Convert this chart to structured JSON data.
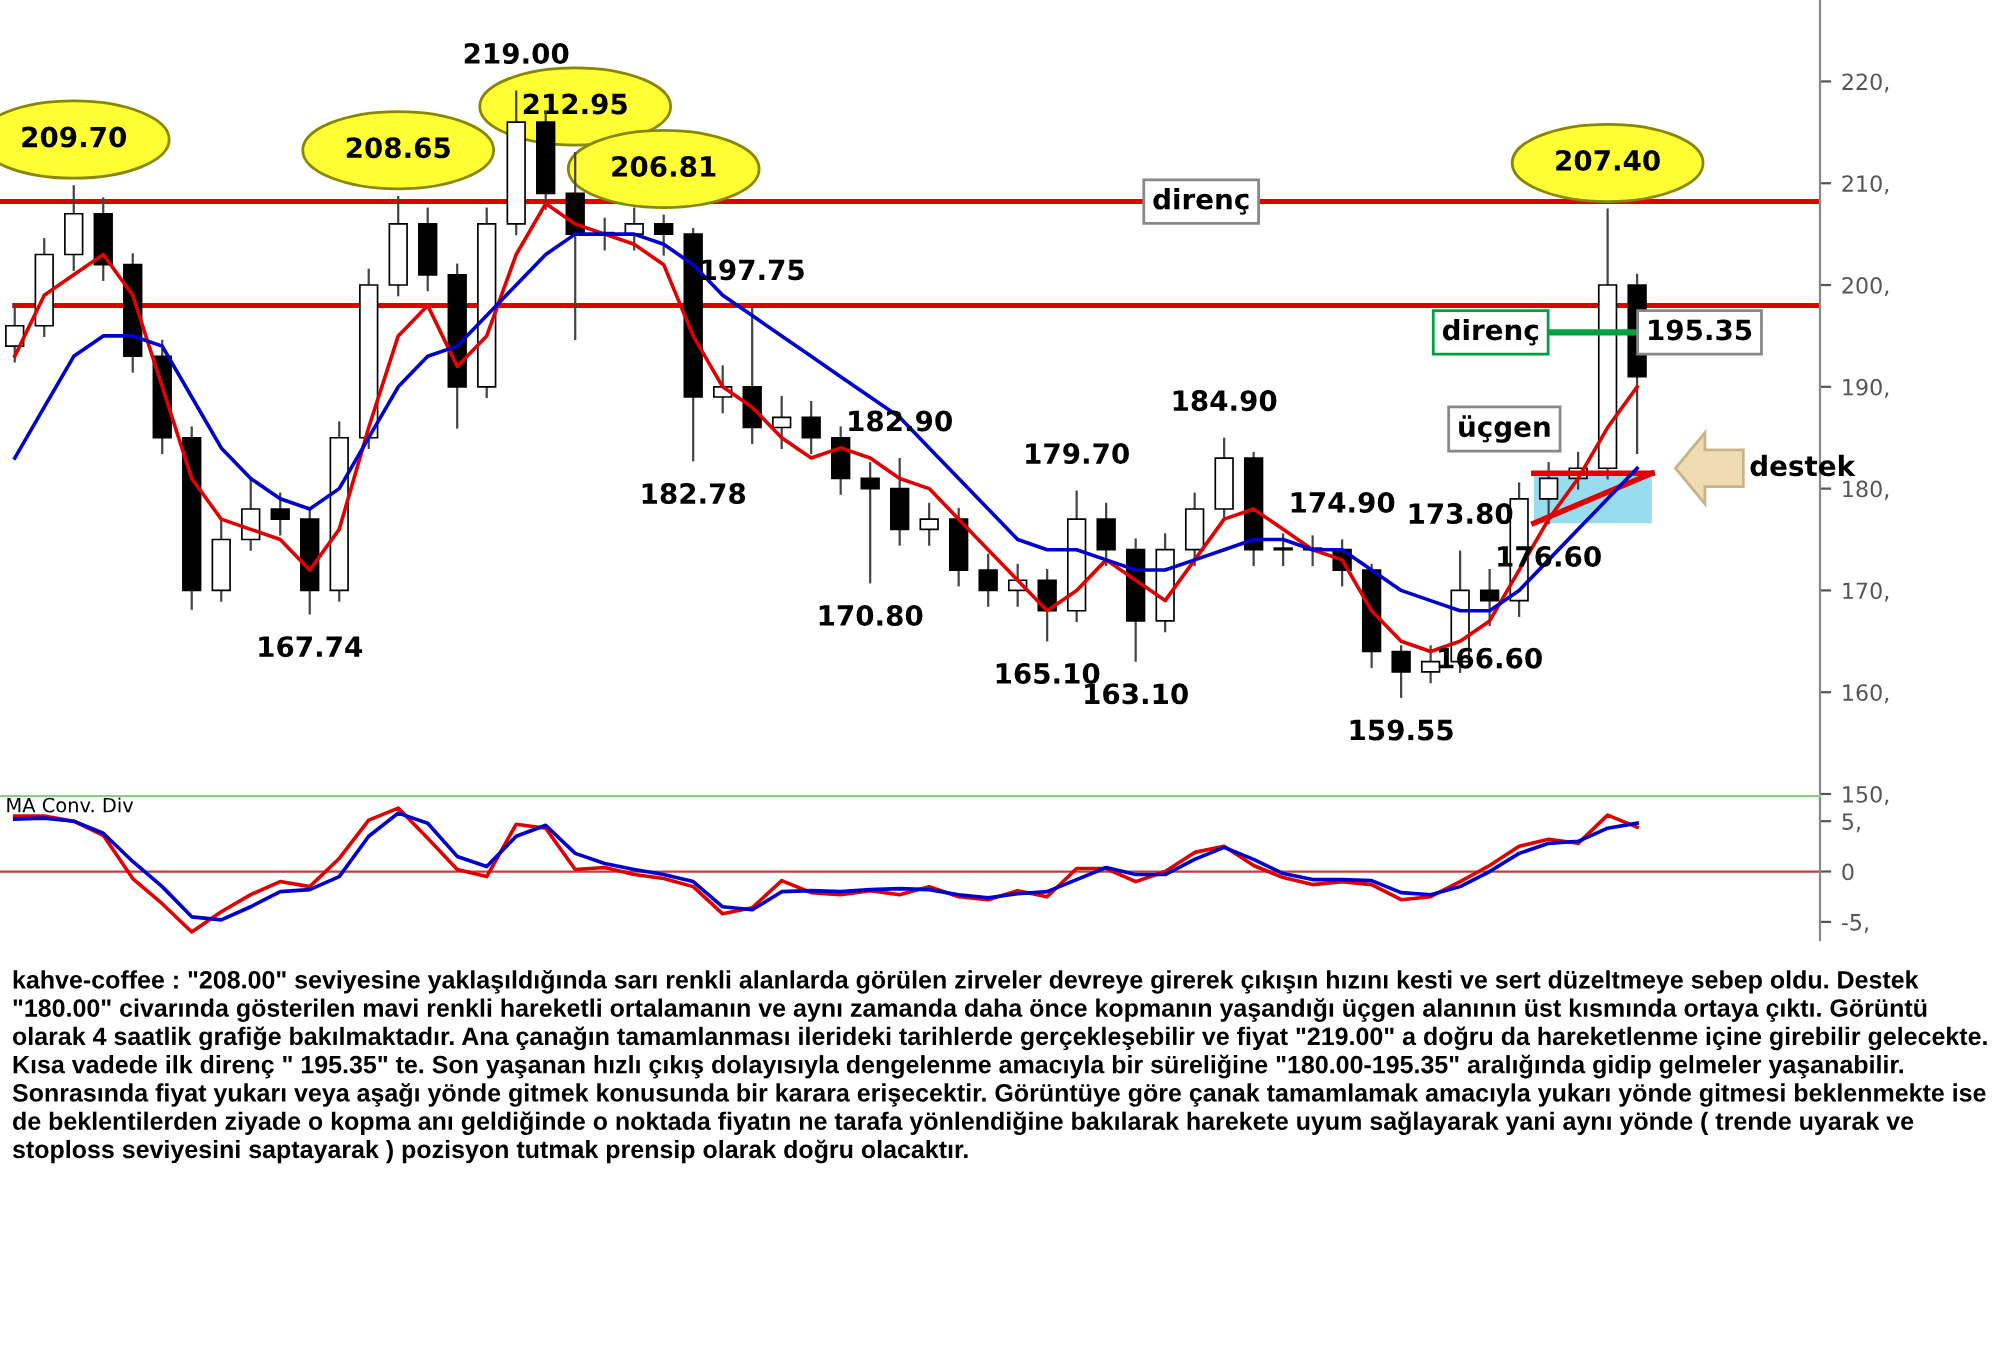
{
  "chart_data": [
    {
      "type": "candlestick",
      "color": "#000000",
      "tick_labels": "y",
      "categories": [
        null,
        null,
        null,
        null,
        null,
        null,
        null,
        null,
        null,
        null,
        null,
        null,
        null,
        null,
        null,
        null,
        null,
        null,
        null,
        null,
        null,
        null,
        null,
        null,
        null,
        null,
        null,
        null,
        null,
        null,
        null,
        null,
        null,
        null,
        null,
        null,
        null,
        null,
        null,
        null,
        null,
        null,
        null,
        null,
        null,
        null,
        null,
        null,
        null,
        null,
        null,
        null,
        null,
        null,
        null,
        null
      ],
      "ohlc": [
        [
          194,
          198,
          192.5,
          196
        ],
        [
          196,
          204.5,
          195,
          203
        ],
        [
          203,
          209.7,
          201.5,
          207
        ],
        [
          207,
          208.5,
          200.5,
          202
        ],
        [
          202,
          203,
          191.5,
          193
        ],
        [
          193,
          194.5,
          183.5,
          185
        ],
        [
          185,
          186,
          168.2,
          170
        ],
        [
          170,
          177,
          169,
          175
        ],
        [
          175,
          181,
          174,
          178
        ],
        [
          178,
          179.5,
          175.5,
          177
        ],
        [
          177,
          178,
          167.74,
          170
        ],
        [
          170,
          186.5,
          169,
          185
        ],
        [
          185,
          201.5,
          184,
          200
        ],
        [
          200,
          208.65,
          199,
          206
        ],
        [
          206,
          207.5,
          199.5,
          201
        ],
        [
          201,
          202,
          186,
          190
        ],
        [
          190,
          207.5,
          189,
          206
        ],
        [
          206,
          219,
          205,
          216
        ],
        [
          216,
          217,
          207.5,
          209
        ],
        [
          209,
          212.95,
          194.7,
          205
        ],
        [
          205,
          206.5,
          203.5,
          205
        ],
        [
          205,
          207.5,
          203.5,
          206
        ],
        [
          206,
          206.81,
          203,
          205
        ],
        [
          205,
          205.5,
          182.78,
          189
        ],
        [
          189,
          192,
          187.5,
          190
        ],
        [
          190,
          197.75,
          184.5,
          186
        ],
        [
          186,
          189,
          184,
          187
        ],
        [
          187,
          188.5,
          183.5,
          185
        ],
        [
          185,
          186,
          179.5,
          181
        ],
        [
          181,
          182.5,
          170.8,
          180
        ],
        [
          180,
          182.9,
          174.5,
          176
        ],
        [
          176,
          178.5,
          174.5,
          177
        ],
        [
          177,
          178,
          170.5,
          172
        ],
        [
          172,
          173.5,
          168.5,
          170
        ],
        [
          170,
          172.5,
          168.5,
          171
        ],
        [
          171,
          172,
          165.1,
          168
        ],
        [
          168,
          179.7,
          167,
          177
        ],
        [
          177,
          178.5,
          172.5,
          174
        ],
        [
          174,
          175,
          163.1,
          167
        ],
        [
          167,
          175.5,
          166,
          174
        ],
        [
          174,
          179.5,
          172.5,
          178
        ],
        [
          178,
          184.9,
          177,
          183
        ],
        [
          183,
          183.5,
          172.5,
          174
        ],
        [
          174,
          175.5,
          172.5,
          174
        ],
        [
          174,
          175.3,
          172.5,
          174
        ],
        [
          174,
          174.9,
          170.5,
          172
        ],
        [
          172,
          172.5,
          162.5,
          164
        ],
        [
          164,
          164.5,
          159.55,
          162
        ],
        [
          162,
          164.5,
          161,
          163
        ],
        [
          163,
          173.8,
          162,
          170
        ],
        [
          170,
          172,
          166.6,
          169
        ],
        [
          169,
          180.5,
          167.5,
          179
        ],
        [
          179,
          182.5,
          176.6,
          181
        ],
        [
          181,
          183.5,
          180,
          182
        ],
        [
          182,
          207.4,
          181,
          200
        ],
        [
          200,
          201,
          183.5,
          191
        ]
      ],
      "series": [
        {
          "type": "line",
          "color": "#e00000",
          "values": [
            193,
            199,
            201,
            203,
            199,
            190,
            181,
            177,
            176,
            175,
            172,
            176,
            186,
            195,
            198,
            192,
            195,
            203,
            208,
            206,
            205,
            204,
            202,
            195,
            190,
            188,
            185,
            183,
            184,
            183,
            181,
            180,
            177,
            174,
            171,
            168,
            170,
            173,
            171,
            169,
            173,
            177,
            178,
            176,
            174,
            173,
            168,
            165,
            164,
            165,
            167,
            172,
            177,
            181,
            186,
            190
          ]
        },
        {
          "type": "line",
          "color": "#0000cc",
          "values": [
            183,
            188,
            193,
            195,
            195,
            194,
            189,
            184,
            181,
            179,
            178,
            180,
            185,
            190,
            193,
            194,
            197,
            200,
            203,
            205,
            205,
            205,
            204,
            202,
            199,
            197,
            195,
            193,
            191,
            189,
            187,
            184,
            181,
            178,
            175,
            174,
            174,
            173,
            172,
            172,
            173,
            174,
            175,
            175,
            174,
            174,
            172,
            170,
            169,
            168,
            168,
            170,
            173,
            176,
            179,
            182
          ]
        }
      ],
      "ylim": [
        150,
        228
      ],
      "yticks": [
        {
          "value": 150,
          "label": "150,"
        },
        {
          "value": 160,
          "label": "160,"
        },
        {
          "value": 170,
          "label": "170,"
        },
        {
          "value": 180,
          "label": "180,"
        },
        {
          "value": 190,
          "label": "190,"
        },
        {
          "value": 200,
          "label": "200,"
        },
        {
          "value": 210,
          "label": "210,"
        },
        {
          "value": 220,
          "label": "220,"
        }
      ],
      "ref_lines": [
        {
          "axis": "y",
          "value": 208.2,
          "label": "direnç",
          "color": "#e00000"
        },
        {
          "axis": "y",
          "value": 198,
          "color": "#e00000"
        },
        {
          "axis": "y",
          "value": 195.35,
          "label": "direnç",
          "color": "#00a040"
        }
      ],
      "bands": [
        {
          "axis": "y",
          "from": 176.6,
          "to": 181.5,
          "label": "üçgen",
          "color": "#7fd3e8"
        }
      ],
      "annotations": [
        {
          "text": "209.70",
          "y": 209.7
        },
        {
          "text": "167.74",
          "y": 167.74
        },
        {
          "text": "208.65",
          "y": 208.65
        },
        {
          "text": "219.00",
          "y": 219
        },
        {
          "text": "212.95",
          "y": 212.95
        },
        {
          "text": "206.81",
          "y": 206.81
        },
        {
          "text": "182.78",
          "y": 182.78
        },
        {
          "text": "197.75",
          "y": 197.75
        },
        {
          "text": "170.80",
          "y": 170.8
        },
        {
          "text": "182.90",
          "y": 182.9
        },
        {
          "text": "165.10",
          "y": 165.1
        },
        {
          "text": "179.70",
          "y": 179.7
        },
        {
          "text": "163.10",
          "y": 163.1
        },
        {
          "text": "184.90",
          "y": 184.9
        },
        {
          "text": "174.90",
          "y": 174.9
        },
        {
          "text": "159.55",
          "y": 159.55
        },
        {
          "text": "173.80",
          "y": 173.8
        },
        {
          "text": "166.60",
          "y": 166.6
        },
        {
          "text": "176.60",
          "y": 176.6
        },
        {
          "text": "207.40",
          "y": 207.4
        },
        "195.35",
        "destek",
        "kahve-coffee : \"208.00\" seviyesine yaklaşıldığında sarı renkli alanlarda görülen zirveler devreye girerek çıkışın hızını kesti ve sert düzeltmeye sebep oldu. Destek \"180.00\" civarında gösterilen mavi renkli hareketli ortalamanın ve aynı zamanda daha önce kopmanın yaşandığı üçgen alanının üst kısmında ortaya çıktı. Görüntü olarak 4 saatlik grafiğe bakılmaktadır. Ana çanağın tamamlanması ilerideki tarihlerde gerçekleşebilir ve fiyat \"219.00\" a doğru da hareketlenme içine girebilir gelecekte. Kısa vadede ilk direnç \" 195.35\" te. Son yaşanan hızlı çıkış dolayısıyla dengelenme amacıyla bir süreliğine \"180.00-195.35\" aralığında gidip gelmeler yaşanabilir. Sonrasında fiyat yukarı veya aşağı yönde gitmek konusunda bir karara erişecektir. Görüntüye göre çanak tamamlamak amacıyla yukarı yönde gitmesi beklenmekte ise de beklentilerden ziyade o kopma anı geldiğinde o noktada fiyatın ne tarafa yönlendiğine bakılarak harekete uyum sağlayarak yani aynı yönde ( trende uyarak ve stoploss seviyesini saptayarak ) pozisyon tutmak prensip olarak doğru olacaktır."
      ]
    },
    {
      "type": "line",
      "title": "MA Conv. Div",
      "tick_labels": "y",
      "categories": [
        null,
        null,
        null,
        null,
        null,
        null,
        null,
        null,
        null,
        null,
        null,
        null,
        null,
        null,
        null,
        null,
        null,
        null,
        null,
        null,
        null,
        null,
        null,
        null,
        null,
        null,
        null,
        null,
        null,
        null,
        null,
        null,
        null,
        null,
        null,
        null,
        null,
        null,
        null,
        null,
        null,
        null,
        null,
        null,
        null,
        null,
        null,
        null,
        null,
        null,
        null,
        null,
        null,
        null,
        null,
        null
      ],
      "series": [
        {
          "color": "#e00000",
          "values": [
            5.5,
            5.5,
            5,
            3.6,
            -0.7,
            -3.2,
            -6,
            -4,
            -2.3,
            -1,
            -1.5,
            1.3,
            5.1,
            6.3,
            3.3,
            0.2,
            -0.5,
            4.7,
            4.3,
            0.2,
            0.4,
            -0.3,
            -0.7,
            -1.5,
            -4.2,
            -3.6,
            -0.9,
            -2.1,
            -2.3,
            -1.9,
            -2.3,
            -1.5,
            -2.5,
            -2.8,
            -1.9,
            -2.5,
            0.3,
            0.3,
            -1,
            0,
            1.9,
            2.5,
            0.6,
            -0.6,
            -1.3,
            -1,
            -1.3,
            -2.8,
            -2.5,
            -1,
            0.6,
            2.5,
            3.2,
            2.8,
            5.6,
            4.4
          ]
        },
        {
          "color": "#0000cc",
          "values": [
            5.2,
            5.3,
            5,
            3.8,
            1,
            -1.5,
            -4.5,
            -4.8,
            -3.5,
            -2,
            -1.8,
            -0.5,
            3.5,
            5.8,
            4.8,
            1.5,
            0.5,
            3.5,
            4.6,
            1.8,
            0.8,
            0.2,
            -0.3,
            -1,
            -3.5,
            -3.8,
            -2,
            -1.9,
            -2,
            -1.8,
            -1.7,
            -1.8,
            -2.3,
            -2.6,
            -2.2,
            -2,
            -0.8,
            0.4,
            -0.3,
            -0.3,
            1.2,
            2.4,
            1.2,
            -0.2,
            -0.8,
            -0.8,
            -0.9,
            -2.1,
            -2.3,
            -1.5,
            0,
            1.8,
            2.8,
            3,
            4.3,
            4.8
          ]
        }
      ],
      "ylim": [
        -6.8,
        7.5
      ],
      "yticks": [
        {
          "value": -5,
          "label": "-5,"
        },
        0,
        {
          "value": 5,
          "label": "5,"
        }
      ],
      "ref_lines": [
        {
          "axis": "y",
          "value": 0,
          "color": "#c04040"
        }
      ]
    }
  ]
}
